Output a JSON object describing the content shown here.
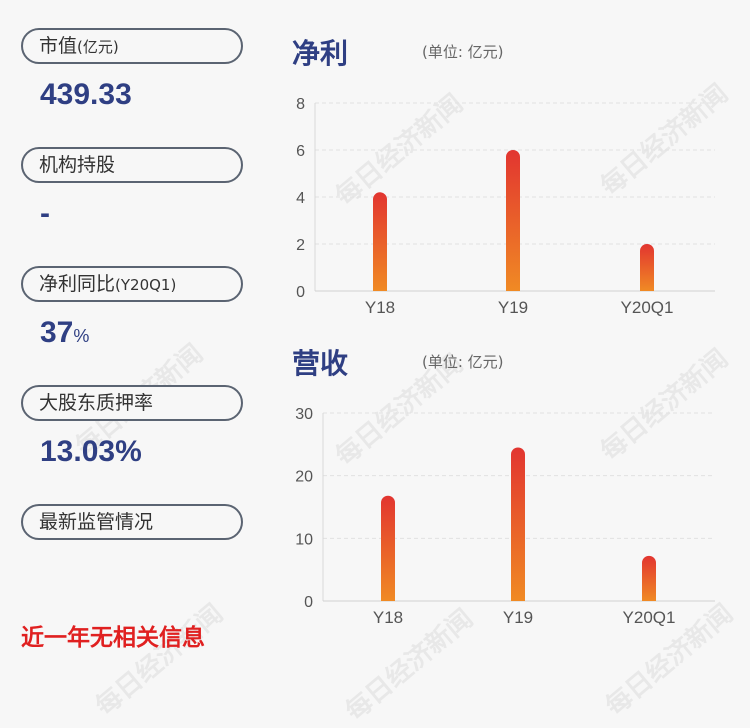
{
  "left_panel": {
    "market_cap": {
      "label_main": "市值",
      "label_sub": "(亿元)",
      "value": "439.33"
    },
    "institutional": {
      "label": "机构持股",
      "value": "-"
    },
    "profit_yoy": {
      "label_main": "净利同比",
      "label_sub": "(Y20Q1)",
      "value": "37",
      "unit": "%"
    },
    "pledge": {
      "label": "大股东质押率",
      "value": "13.03%"
    },
    "regulatory": {
      "label": "最新监管情况"
    },
    "notice": "近一年无相关信息"
  },
  "watermark_text": "每日经济新闻",
  "colors": {
    "bar_top": "#e23530",
    "bar_bottom": "#f08a24",
    "title": "#2f3f83",
    "notice": "#e02020"
  },
  "chart_data": [
    {
      "type": "bar",
      "title": "净利",
      "unit_label": "(单位: 亿元)",
      "categories": [
        "Y18",
        "Y19",
        "Y20Q1"
      ],
      "values": [
        4.2,
        6.0,
        2.0
      ],
      "ylim": [
        0,
        8
      ],
      "yticks": [
        0,
        2,
        4,
        6,
        8
      ],
      "grid": true
    },
    {
      "type": "bar",
      "title": "营收",
      "unit_label": "(单位: 亿元)",
      "categories": [
        "Y18",
        "Y19",
        "Y20Q1"
      ],
      "values": [
        16.8,
        24.5,
        7.2
      ],
      "ylim": [
        0,
        30
      ],
      "yticks": [
        0,
        10,
        20,
        30
      ],
      "grid": true
    }
  ]
}
